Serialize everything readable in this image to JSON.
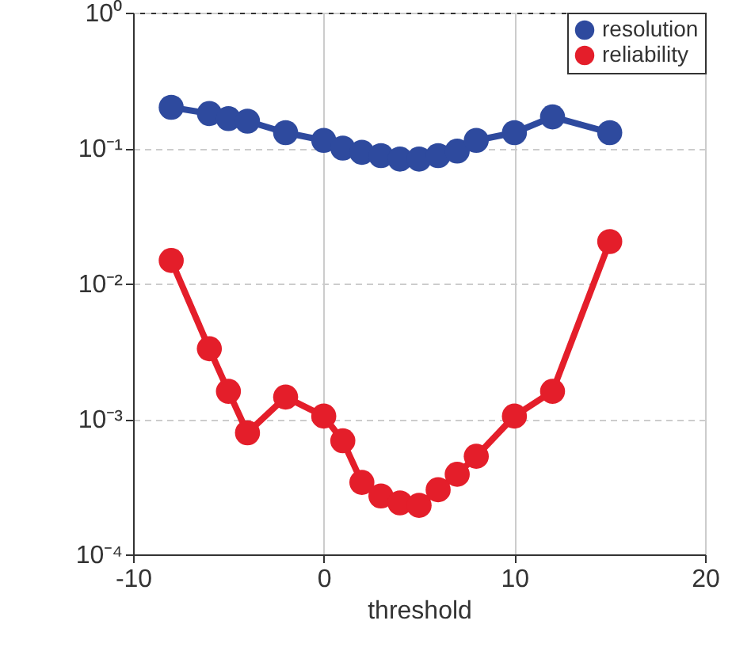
{
  "chart_data": {
    "type": "line",
    "xlabel": "threshold",
    "xlim": [
      -10,
      20
    ],
    "xticks": [
      -10,
      0,
      10,
      20
    ],
    "ylim": [
      0.0001,
      1
    ],
    "yticks": [
      {
        "value": 0.0001,
        "label": "10⁻⁴"
      },
      {
        "value": 0.001,
        "label": "10⁻³"
      },
      {
        "value": 0.01,
        "label": "10⁻²"
      },
      {
        "value": 0.1,
        "label": "10⁻¹"
      },
      {
        "value": 1,
        "label": "10⁰"
      }
    ],
    "log": "y",
    "grid": true,
    "legend": "top right",
    "marker": "circle",
    "line_style": "solid",
    "x": [
      -8,
      -6,
      -5,
      -4,
      -2,
      0,
      1,
      2,
      3,
      4,
      5,
      6,
      7,
      8,
      10,
      12,
      15
    ],
    "series": [
      {
        "name": "resolution",
        "color": "#2e4a9e",
        "values": [
          0.2,
          0.18,
          0.165,
          0.158,
          0.13,
          0.114,
          0.1,
          0.093,
          0.088,
          0.083,
          0.083,
          0.088,
          0.095,
          0.114,
          0.13,
          0.17,
          0.13
        ]
      },
      {
        "name": "reliability",
        "color": "#e41e2a",
        "values": [
          0.0148,
          0.0033,
          0.0016,
          0.00079,
          0.00145,
          0.00105,
          0.00069,
          0.00034,
          0.00027,
          0.00024,
          0.00023,
          0.0003,
          0.00039,
          0.00053,
          0.00105,
          0.0016,
          0.0204
        ]
      }
    ]
  }
}
